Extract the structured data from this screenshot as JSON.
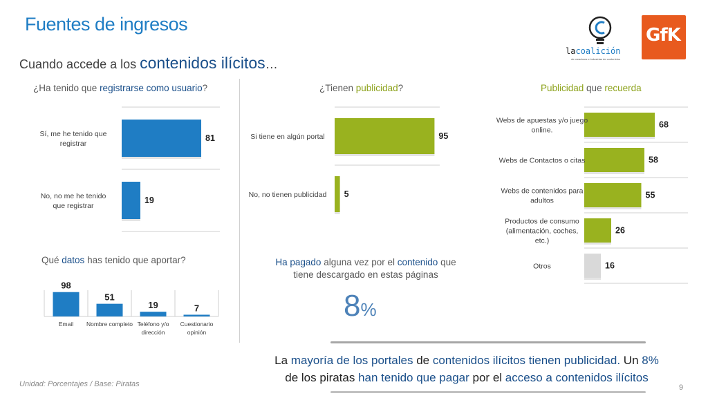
{
  "header": {
    "title": "Fuentes de ingresos",
    "subtitle_prefix": "Cuando accede a los",
    "subtitle_big": "contenidos ilícitos",
    "subtitle_suffix": "…"
  },
  "logos": {
    "lacoalicion_a": "la",
    "lacoalicion_b": "coalición",
    "lacoalicion_tag": "de creadores e industrias de contenidos",
    "gfk": "GfK"
  },
  "chart_registro": {
    "q_parts": [
      "¿Ha tenido que ",
      "registrarse como usuario",
      "?"
    ]
  },
  "chart_publicidad": {
    "q_parts": [
      "¿Tienen ",
      "publicidad",
      "?"
    ]
  },
  "chart_recuerda": {
    "q_parts": [
      "Publicidad",
      " que ",
      "recuerda"
    ]
  },
  "chart_datos": {
    "q_parts": [
      "Qué ",
      "datos",
      " has tenido que aportar?"
    ]
  },
  "pagado": {
    "parts": [
      "Ha pagado",
      " alguna vez por el ",
      "contenido",
      " que"
    ],
    "line2": "tiene descargado en estas páginas",
    "pct_number": "8",
    "pct_sign": "%"
  },
  "conclusion": {
    "parts": [
      "La ",
      "mayoría de los portales",
      " de ",
      "contenidos ilícitos tienen publicidad.",
      " Un ",
      "8%",
      "de los piratas ",
      "han tenido que pagar",
      " por el ",
      "acceso a contenidos ilícitos"
    ]
  },
  "footer": {
    "note": "Unidad: Porcentajes / Base: Piratas",
    "page": "9"
  },
  "colors": {
    "blue": "#1f7dc4",
    "green": "#99b21f",
    "gray_bar": "#d9d9d9",
    "navy": "#1a4f8a"
  },
  "chart_data": [
    {
      "type": "bar",
      "orientation": "horizontal",
      "title": "¿Ha tenido que registrarse como usuario?",
      "categories": [
        "Sí, me he tenido que registrar",
        "No, no me he tenido que registrar"
      ],
      "values": [
        81,
        19
      ],
      "xlim": [
        0,
        100
      ]
    },
    {
      "type": "bar",
      "orientation": "horizontal",
      "title": "¿Tienen publicidad?",
      "categories": [
        "Si tiene en algún portal",
        "No, no tienen publicidad"
      ],
      "values": [
        95,
        5
      ],
      "xlim": [
        0,
        100
      ]
    },
    {
      "type": "bar",
      "orientation": "horizontal",
      "title": "Publicidad que recuerda",
      "categories": [
        "Webs de apuestas y/o juego online.",
        "Webs de Contactos o citas",
        "Webs de contenidos para adultos",
        "Productos de consumo (alimentación, coches, etc.)",
        "Otros"
      ],
      "values": [
        68,
        58,
        55,
        26,
        16
      ],
      "xlim": [
        0,
        100
      ]
    },
    {
      "type": "bar",
      "orientation": "vertical",
      "title": "Qué datos has tenido que aportar?",
      "categories": [
        "Email",
        "Nombre completo",
        "Teléfono y/o dirección",
        "Cuestionario opinión"
      ],
      "values": [
        98,
        51,
        19,
        7
      ],
      "ylim": [
        0,
        100
      ]
    }
  ]
}
